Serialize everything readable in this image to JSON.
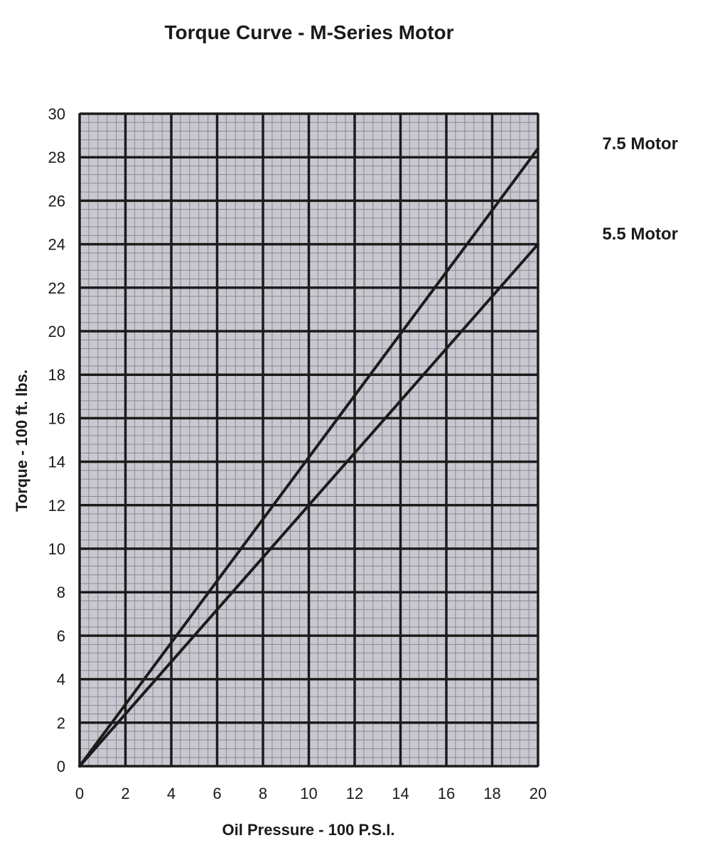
{
  "chart_data": {
    "type": "line",
    "title": "Torque Curve - M-Series Motor",
    "xlabel": "Oil Pressure - 100 P.S.I.",
    "ylabel": "Torque - 100 ft. lbs.",
    "xlim": [
      0,
      20
    ],
    "ylim": [
      0,
      30
    ],
    "x_ticks": [
      0,
      2,
      4,
      6,
      8,
      10,
      12,
      14,
      16,
      18,
      20
    ],
    "y_ticks": [
      0,
      2,
      4,
      6,
      8,
      10,
      12,
      14,
      16,
      18,
      20,
      22,
      24,
      26,
      28,
      30
    ],
    "grid": true,
    "legend": "right",
    "series": [
      {
        "name": "7.5 Motor",
        "x": [
          0,
          20
        ],
        "y": [
          0,
          28.4
        ]
      },
      {
        "name": "5.5 Motor",
        "x": [
          0,
          20
        ],
        "y": [
          0,
          24
        ]
      }
    ],
    "colors": {
      "plot_background": "#c9c7cf",
      "major_grid": "#1c1c1c",
      "minor_grid": "#8a8890",
      "line": "#1c1c1c"
    }
  }
}
